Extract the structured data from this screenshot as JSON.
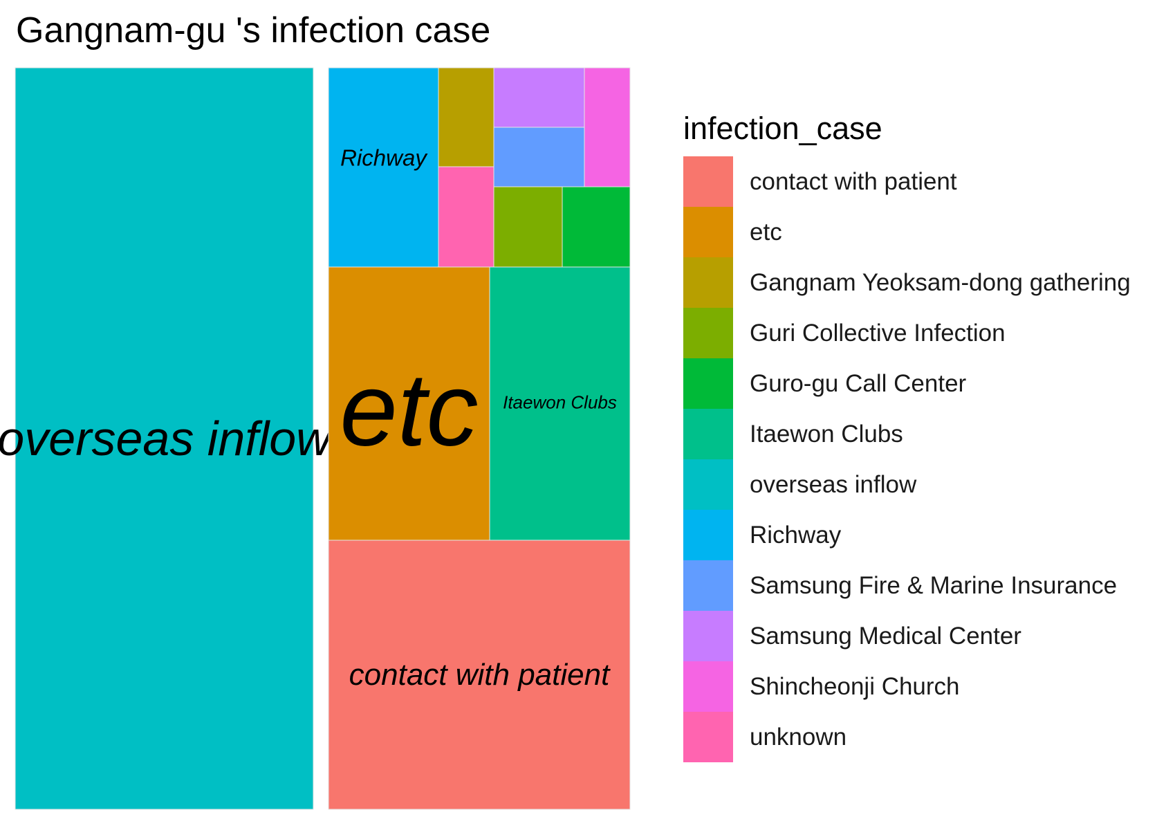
{
  "chart_data": {
    "type": "treemap",
    "title": "Gangnam-gu 's infection case",
    "legend": {
      "title": "infection_case",
      "position": "right",
      "entries": [
        {
          "label": "contact with patient",
          "color": "#F8766D"
        },
        {
          "label": "etc",
          "color": "#DB8E00"
        },
        {
          "label": "Gangnam Yeoksam-dong gathering",
          "color": "#B79F00"
        },
        {
          "label": "Guri Collective Infection",
          "color": "#7CAE00"
        },
        {
          "label": "Guro-gu Call Center",
          "color": "#00BA38"
        },
        {
          "label": "Itaewon Clubs",
          "color": "#00C08B"
        },
        {
          "label": "overseas inflow",
          "color": "#00BFC4"
        },
        {
          "label": "Richway",
          "color": "#00B4F0"
        },
        {
          "label": "Samsung Fire & Marine Insurance",
          "color": "#619CFF"
        },
        {
          "label": "Samsung Medical Center",
          "color": "#C77CFF"
        },
        {
          "label": "Shincheonji Church",
          "color": "#F564E3"
        },
        {
          "label": "unknown",
          "color": "#FF64B0"
        }
      ]
    },
    "tiles": [
      {
        "category": "overseas inflow",
        "area_share": 0.4468,
        "label": "overseas inflow",
        "color": "#00BFC4"
      },
      {
        "category": "contact with patient",
        "area_share": 0.181,
        "label": "contact with patient",
        "color": "#F8766D"
      },
      {
        "category": "etc",
        "area_share": 0.0967,
        "label": "etc",
        "color": "#DB8E00"
      },
      {
        "category": "Itaewon Clubs",
        "area_share": 0.0841,
        "label": "Itaewon Clubs",
        "color": "#00C08B"
      },
      {
        "category": "Richway",
        "area_share": 0.0481,
        "label": "Richway",
        "color": "#00B4F0"
      },
      {
        "category": "Samsung Medical Center",
        "area_share": 0.0119,
        "color": "#C77CFF"
      },
      {
        "category": "Samsung Fire & Marine Insurance",
        "area_share": 0.0118,
        "color": "#619CFF"
      },
      {
        "category": "Shincheonji Church",
        "area_share": 0.0121,
        "color": "#F564E3"
      },
      {
        "category": "Gangnam Yeoksam-dong gathering",
        "area_share": 0.0131,
        "color": "#B79F00"
      },
      {
        "category": "unknown",
        "area_share": 0.0119,
        "color": "#FF64B0"
      },
      {
        "category": "Guri Collective Infection",
        "area_share": 0.0117,
        "color": "#7CAE00"
      },
      {
        "category": "Guro-gu Call Center",
        "area_share": 0.0117,
        "color": "#00BA38"
      }
    ]
  }
}
